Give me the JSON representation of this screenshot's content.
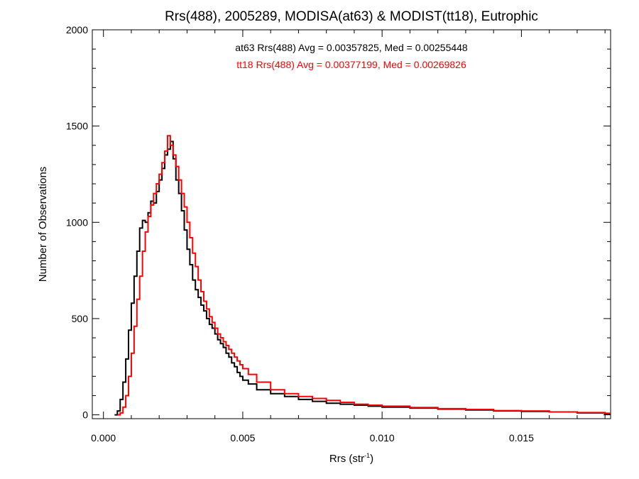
{
  "chart_data": {
    "type": "line",
    "step": true,
    "title": "Rrs(488), 2005289, MODISA(at63) & MODIST(tt18), Eutrophic",
    "xlabel": {
      "base": "Rrs (str",
      "sup": "-1",
      "tail": ")"
    },
    "ylabel": "Number of Observations",
    "xlim": [
      -0.0004,
      0.0182
    ],
    "ylim": [
      -20,
      2000
    ],
    "x_ticks": [
      0.0,
      0.005,
      0.01,
      0.015
    ],
    "x_tick_labels": [
      "0.000",
      "0.005",
      "0.010",
      "0.015"
    ],
    "y_ticks": [
      0,
      500,
      1000,
      1500,
      2000
    ],
    "y_tick_labels": [
      "0",
      "500",
      "1000",
      "1500",
      "2000"
    ],
    "grid": false,
    "annotations": [
      {
        "text": "at63 Rrs(488) Avg = 0.00357825, Med = 0.00255448",
        "color": "#000000"
      },
      {
        "text": "tt18 Rrs(488) Avg = 0.00377199, Med = 0.00269826",
        "color": "#ff0000"
      }
    ],
    "series": [
      {
        "color": "#000000",
        "points": [
          [
            0.0004,
            0
          ],
          [
            0.0005,
            20
          ],
          [
            0.0006,
            80
          ],
          [
            0.0007,
            170
          ],
          [
            0.0008,
            290
          ],
          [
            0.0009,
            440
          ],
          [
            0.001,
            580
          ],
          [
            0.0011,
            720
          ],
          [
            0.0012,
            850
          ],
          [
            0.0013,
            970
          ],
          [
            0.0014,
            1010
          ],
          [
            0.0015,
            1000
          ],
          [
            0.0016,
            1050
          ],
          [
            0.0017,
            1110
          ],
          [
            0.0018,
            1100
          ],
          [
            0.0019,
            1160
          ],
          [
            0.002,
            1220
          ],
          [
            0.0021,
            1280
          ],
          [
            0.0022,
            1350
          ],
          [
            0.0023,
            1380
          ],
          [
            0.0024,
            1420
          ],
          [
            0.0025,
            1330
          ],
          [
            0.0026,
            1220
          ],
          [
            0.0027,
            1150
          ],
          [
            0.0028,
            1060
          ],
          [
            0.0029,
            960
          ],
          [
            0.003,
            860
          ],
          [
            0.0031,
            780
          ],
          [
            0.0032,
            700
          ],
          [
            0.0033,
            650
          ],
          [
            0.0034,
            610
          ],
          [
            0.0035,
            570
          ],
          [
            0.0036,
            540
          ],
          [
            0.0037,
            500
          ],
          [
            0.0038,
            470
          ],
          [
            0.0039,
            450
          ],
          [
            0.004,
            420
          ],
          [
            0.0041,
            390
          ],
          [
            0.0042,
            370
          ],
          [
            0.0043,
            350
          ],
          [
            0.0044,
            320
          ],
          [
            0.0045,
            300
          ],
          [
            0.0046,
            270
          ],
          [
            0.0047,
            250
          ],
          [
            0.0048,
            220
          ],
          [
            0.0049,
            200
          ],
          [
            0.005,
            180
          ],
          [
            0.0052,
            160
          ],
          [
            0.0055,
            130
          ],
          [
            0.006,
            110
          ],
          [
            0.0065,
            95
          ],
          [
            0.007,
            80
          ],
          [
            0.0075,
            70
          ],
          [
            0.008,
            60
          ],
          [
            0.0085,
            55
          ],
          [
            0.009,
            50
          ],
          [
            0.0095,
            45
          ],
          [
            0.01,
            40
          ],
          [
            0.011,
            35
          ],
          [
            0.012,
            30
          ],
          [
            0.013,
            25
          ],
          [
            0.014,
            20
          ],
          [
            0.015,
            18
          ],
          [
            0.016,
            15
          ],
          [
            0.017,
            10
          ],
          [
            0.018,
            5
          ]
        ]
      },
      {
        "color": "#ff0000",
        "points": [
          [
            0.0005,
            0
          ],
          [
            0.0006,
            10
          ],
          [
            0.0007,
            40
          ],
          [
            0.0008,
            100
          ],
          [
            0.0009,
            200
          ],
          [
            0.001,
            320
          ],
          [
            0.0011,
            460
          ],
          [
            0.0012,
            600
          ],
          [
            0.0013,
            720
          ],
          [
            0.0014,
            850
          ],
          [
            0.0015,
            950
          ],
          [
            0.0016,
            1030
          ],
          [
            0.0017,
            1090
          ],
          [
            0.0018,
            1150
          ],
          [
            0.0019,
            1200
          ],
          [
            0.002,
            1250
          ],
          [
            0.0021,
            1310
          ],
          [
            0.0022,
            1370
          ],
          [
            0.0023,
            1450
          ],
          [
            0.0024,
            1400
          ],
          [
            0.0025,
            1350
          ],
          [
            0.0026,
            1290
          ],
          [
            0.0027,
            1220
          ],
          [
            0.0028,
            1150
          ],
          [
            0.0029,
            1080
          ],
          [
            0.003,
            1000
          ],
          [
            0.0031,
            920
          ],
          [
            0.0032,
            840
          ],
          [
            0.0033,
            770
          ],
          [
            0.0034,
            700
          ],
          [
            0.0035,
            640
          ],
          [
            0.0036,
            590
          ],
          [
            0.0037,
            550
          ],
          [
            0.0038,
            510
          ],
          [
            0.0039,
            480
          ],
          [
            0.004,
            450
          ],
          [
            0.0041,
            420
          ],
          [
            0.0042,
            400
          ],
          [
            0.0043,
            380
          ],
          [
            0.0044,
            360
          ],
          [
            0.0045,
            340
          ],
          [
            0.0046,
            320
          ],
          [
            0.0047,
            300
          ],
          [
            0.0048,
            280
          ],
          [
            0.0049,
            260
          ],
          [
            0.005,
            240
          ],
          [
            0.0052,
            210
          ],
          [
            0.0055,
            170
          ],
          [
            0.006,
            130
          ],
          [
            0.0065,
            110
          ],
          [
            0.007,
            95
          ],
          [
            0.0075,
            85
          ],
          [
            0.008,
            75
          ],
          [
            0.0085,
            65
          ],
          [
            0.009,
            55
          ],
          [
            0.0095,
            50
          ],
          [
            0.01,
            45
          ],
          [
            0.011,
            38
          ],
          [
            0.012,
            32
          ],
          [
            0.013,
            28
          ],
          [
            0.014,
            22
          ],
          [
            0.015,
            20
          ],
          [
            0.016,
            15
          ],
          [
            0.017,
            12
          ],
          [
            0.018,
            8
          ]
        ]
      }
    ]
  }
}
